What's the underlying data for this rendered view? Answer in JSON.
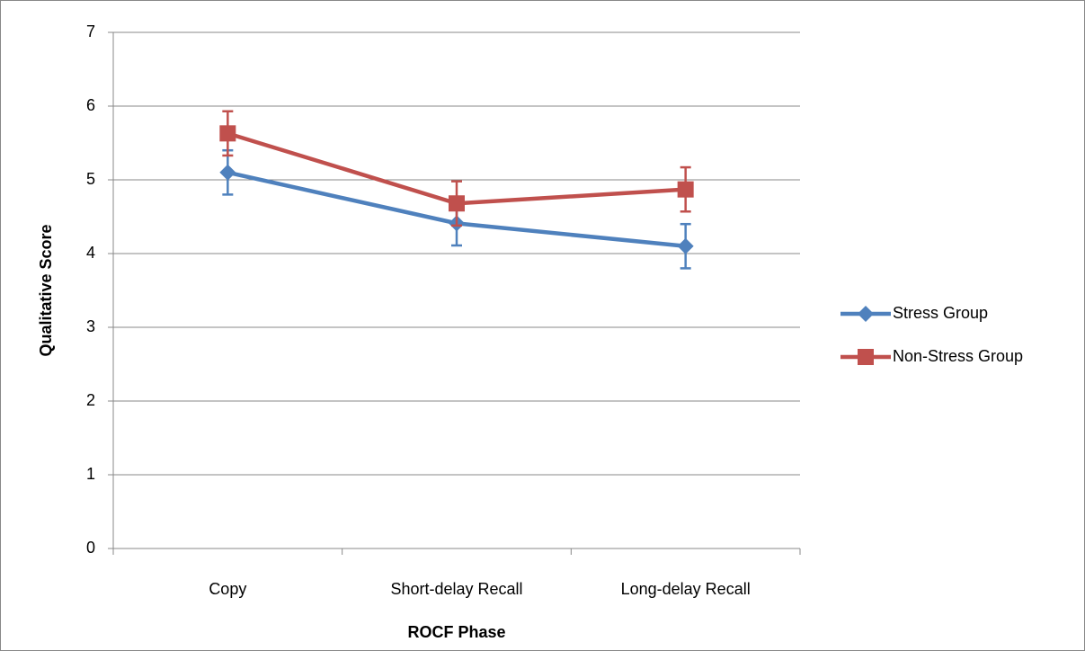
{
  "chart_data": {
    "type": "line",
    "x_label": "ROCF Phase",
    "y_label": "Qualitative Score",
    "categories": [
      "Copy",
      "Short-delay Recall",
      "Long-delay Recall"
    ],
    "series": [
      {
        "name": "Stress Group",
        "color": "#4f81bd",
        "marker": "diamond",
        "values": [
          5.1,
          4.41,
          4.1
        ],
        "errors": [
          0.3,
          0.3,
          0.3
        ]
      },
      {
        "name": "Non-Stress Group",
        "color": "#c0504d",
        "marker": "square",
        "values": [
          5.63,
          4.68,
          4.87
        ],
        "errors": [
          0.3,
          0.3,
          0.3
        ]
      }
    ],
    "ylim": [
      0,
      7
    ],
    "yticks": [
      0,
      1,
      2,
      3,
      4,
      5,
      6,
      7
    ],
    "grid": true,
    "legend": "right"
  }
}
